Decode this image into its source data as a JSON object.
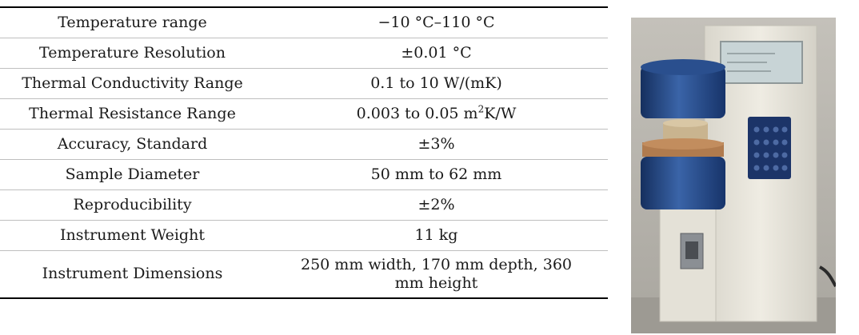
{
  "table": {
    "rows": [
      {
        "property": "Temperature range",
        "value": "−10 °C–110 °C"
      },
      {
        "property": "Temperature Resolution",
        "value": "±0.01 °C"
      },
      {
        "property": "Thermal Conductivity Range",
        "value": "0.1 to 10 W/(mK)"
      },
      {
        "property": "Thermal Resistance Range",
        "value_main": "0.003 to 0.05 m",
        "value_sup": "2",
        "value_tail": "K/W"
      },
      {
        "property": "Accuracy, Standard",
        "value": "±3%"
      },
      {
        "property": "Sample Diameter",
        "value": "50 mm to 62 mm"
      },
      {
        "property": "Reproducibility",
        "value": "±2%"
      },
      {
        "property": "Instrument Weight",
        "value": "11 kg"
      },
      {
        "property": "Instrument Dimensions",
        "value_line1": "250 mm width, 170 mm depth, 360",
        "value_line2": "mm height"
      }
    ]
  },
  "photo": {
    "colors": {
      "wall": "#b9b6af",
      "body": "#ebe8de",
      "plate": "#1f3f78",
      "sample": "#b07b4e",
      "display": "#c8d4d6",
      "keypad": "#1c3468"
    }
  }
}
